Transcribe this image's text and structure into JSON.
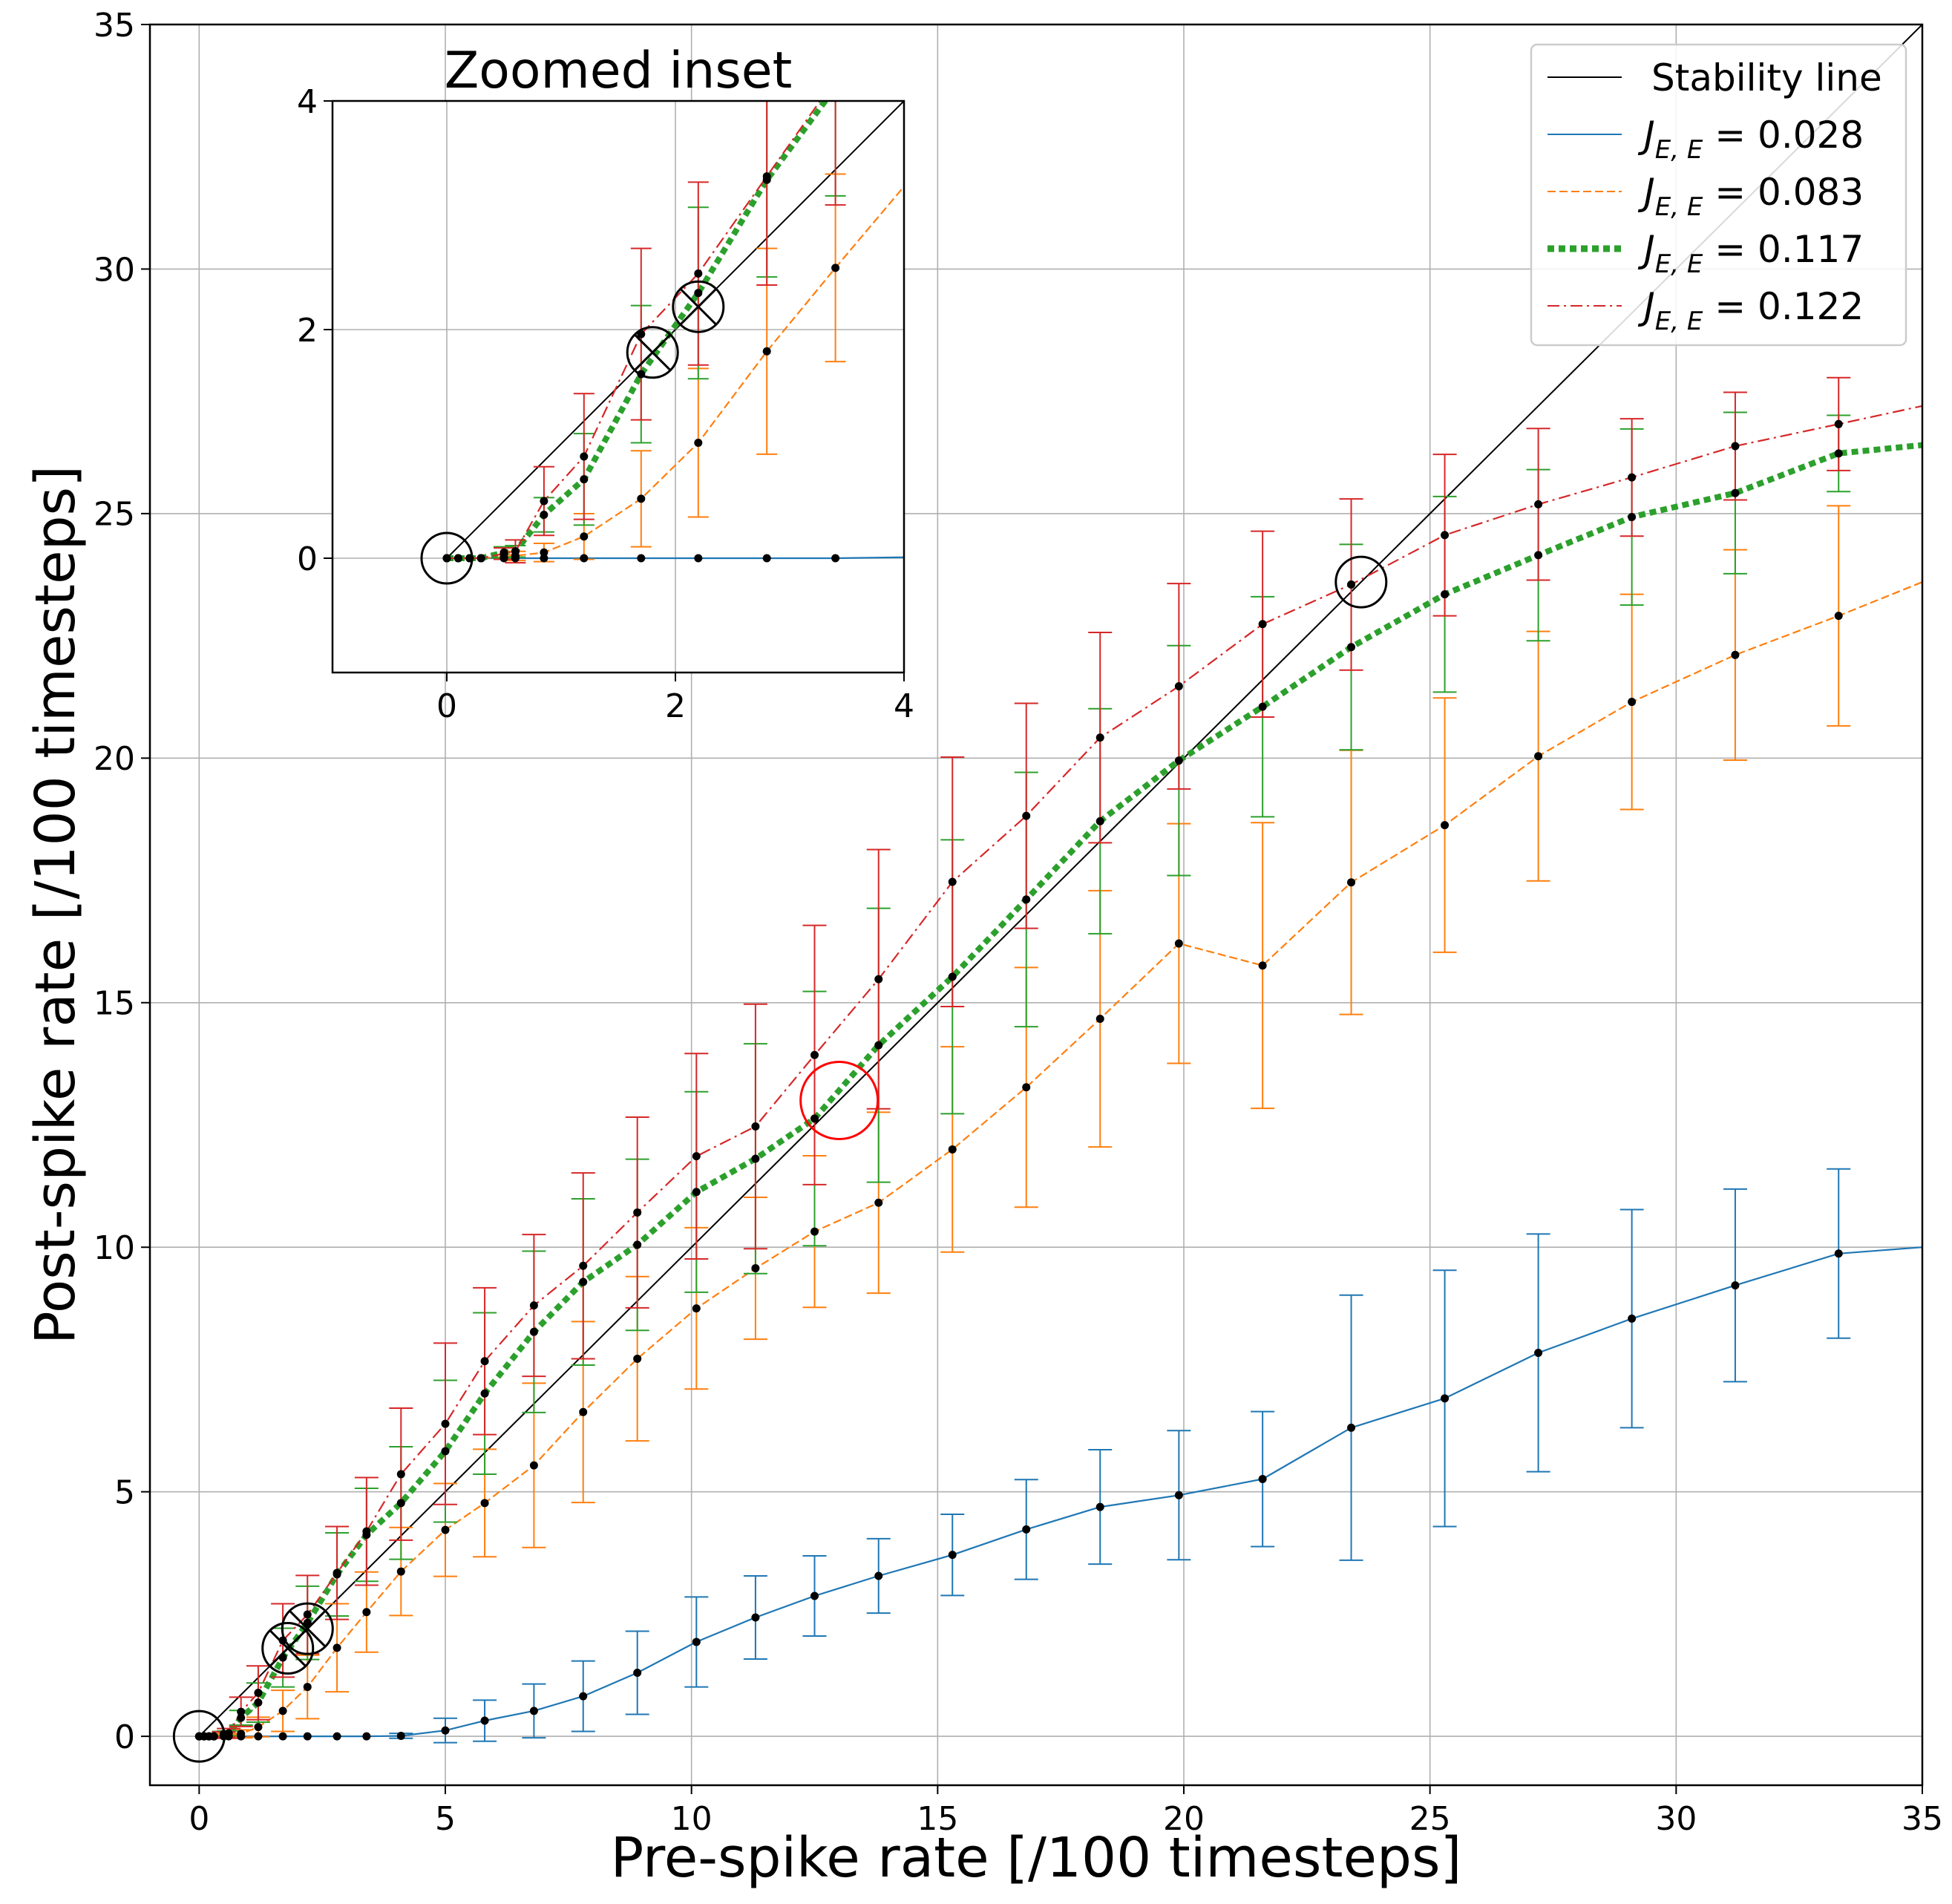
{
  "chart_data": {
    "type": "line",
    "xlabel": "Pre-spike rate [/100 timesteps]",
    "ylabel": "Post-spike rate [/100 timesteps]",
    "xlim": [
      -1,
      35
    ],
    "ylim": [
      -1,
      35
    ],
    "xticks": [
      0,
      5,
      10,
      15,
      20,
      25,
      30,
      35
    ],
    "yticks": [
      0,
      5,
      10,
      15,
      20,
      25,
      30,
      35
    ],
    "grid": true,
    "legend_position": "top-right",
    "legend": [
      {
        "key": "stability",
        "label": "Stability line"
      },
      {
        "key": "s028",
        "label_prefix": "J",
        "label_sub": "E, E",
        "label_value": " = 0.028"
      },
      {
        "key": "s083",
        "label_prefix": "J",
        "label_sub": "E, E",
        "label_value": " = 0.083"
      },
      {
        "key": "s117",
        "label_prefix": "J",
        "label_sub": "E, E",
        "label_value": " = 0.117"
      },
      {
        "key": "s122",
        "label_prefix": "J",
        "label_sub": "E, E",
        "label_value": " = 0.122"
      }
    ],
    "stability_line": {
      "x": [
        0,
        35
      ],
      "y": [
        0,
        35
      ]
    },
    "series": [
      {
        "key": "s028",
        "name": "J_E,E = 0.028",
        "color": "#1f77b4",
        "style": "solid",
        "x": [
          0,
          0.1,
          0.2,
          0.3,
          0.5,
          0.6,
          0.85,
          1.2,
          1.7,
          2.2,
          2.8,
          3.4,
          4.1,
          5.0,
          5.8,
          6.8,
          7.8,
          8.9,
          10.1,
          11.3,
          12.5,
          13.8,
          15.3,
          16.8,
          18.3,
          19.9,
          21.6,
          23.4,
          25.3,
          27.2,
          29.1,
          31.2,
          33.3,
          35
        ],
        "y": [
          0,
          0,
          0,
          0,
          0,
          0,
          0,
          0,
          0,
          0,
          0,
          0,
          0.01,
          0.12,
          0.32,
          0.52,
          0.82,
          1.3,
          1.93,
          2.43,
          2.87,
          3.28,
          3.71,
          4.23,
          4.69,
          4.93,
          5.26,
          6.31,
          6.91,
          7.84,
          8.54,
          9.22,
          9.87,
          10.0
        ],
        "err": [
          0,
          0,
          0,
          0,
          0,
          0,
          0,
          0,
          0,
          0,
          0,
          0,
          0.05,
          0.25,
          0.42,
          0.55,
          0.72,
          0.85,
          0.92,
          0.85,
          0.82,
          0.76,
          0.83,
          1.02,
          1.17,
          1.32,
          1.38,
          2.71,
          2.62,
          2.43,
          2.23,
          1.97,
          1.73,
          null
        ]
      },
      {
        "key": "s083",
        "name": "J_E,E = 0.083",
        "color": "#ff7f0e",
        "style": "dashed",
        "x": [
          0,
          0.1,
          0.2,
          0.3,
          0.5,
          0.6,
          0.85,
          1.2,
          1.7,
          2.2,
          2.8,
          3.4,
          4.1,
          5.0,
          5.8,
          6.8,
          7.8,
          8.9,
          10.1,
          11.3,
          12.5,
          13.8,
          15.3,
          16.8,
          18.3,
          19.9,
          21.6,
          23.4,
          25.3,
          27.2,
          29.1,
          31.2,
          33.3,
          35
        ],
        "y": [
          0,
          0,
          0,
          0,
          0.01,
          0.02,
          0.05,
          0.19,
          0.52,
          1.01,
          1.81,
          2.54,
          3.37,
          4.22,
          4.77,
          5.54,
          6.63,
          7.72,
          8.75,
          9.57,
          10.32,
          10.91,
          12.0,
          13.27,
          14.67,
          16.21,
          15.76,
          17.46,
          18.63,
          20.04,
          21.15,
          22.11,
          22.91,
          23.6
        ],
        "err": [
          0,
          0,
          0,
          0,
          0.02,
          0.04,
          0.08,
          0.2,
          0.42,
          0.65,
          0.9,
          0.82,
          0.9,
          0.95,
          1.1,
          1.68,
          1.85,
          1.68,
          1.65,
          1.45,
          1.55,
          1.85,
          2.1,
          2.45,
          2.62,
          2.45,
          2.92,
          2.7,
          2.6,
          2.55,
          2.2,
          2.15,
          2.25,
          null
        ]
      },
      {
        "key": "s117",
        "name": "J_E,E = 0.117",
        "color": "#2ca02c",
        "style": "dotted",
        "x": [
          0,
          0.1,
          0.2,
          0.3,
          0.5,
          0.6,
          0.85,
          1.2,
          1.7,
          2.2,
          2.8,
          3.4,
          4.1,
          5.0,
          5.8,
          6.8,
          7.8,
          8.9,
          10.1,
          11.3,
          12.5,
          13.8,
          15.3,
          16.8,
          18.3,
          19.9,
          21.6,
          23.4,
          25.3,
          27.2,
          29.1,
          31.2,
          33.3,
          35
        ],
        "y": [
          0,
          0,
          0,
          0,
          0.05,
          0.06,
          0.38,
          0.69,
          1.61,
          2.32,
          3.31,
          4.12,
          4.77,
          5.83,
          7.01,
          8.27,
          9.29,
          10.05,
          11.13,
          11.81,
          12.63,
          14.13,
          15.53,
          17.11,
          18.71,
          19.95,
          21.05,
          22.27,
          23.35,
          24.15,
          24.93,
          25.42,
          26.23,
          26.4
        ],
        "err": [
          0,
          0,
          0,
          0,
          0.05,
          0.05,
          0.15,
          0.4,
          0.6,
          0.75,
          0.85,
          0.95,
          1.15,
          1.45,
          1.65,
          1.65,
          1.7,
          1.75,
          2.05,
          2.35,
          2.6,
          2.8,
          2.8,
          2.6,
          2.3,
          2.35,
          2.25,
          2.1,
          2.0,
          1.75,
          1.8,
          1.65,
          0.78,
          null
        ]
      },
      {
        "key": "s122",
        "name": "J_E,E = 0.122",
        "color": "#d62728",
        "style": "dashdot",
        "x": [
          0,
          0.1,
          0.2,
          0.3,
          0.5,
          0.6,
          0.85,
          1.2,
          1.7,
          2.2,
          2.8,
          3.4,
          4.1,
          5.0,
          5.8,
          6.8,
          7.8,
          8.9,
          10.1,
          11.3,
          12.5,
          13.8,
          15.3,
          16.8,
          18.3,
          19.9,
          21.6,
          23.4,
          25.3,
          27.2,
          29.1,
          31.2,
          33.3,
          35
        ],
        "y": [
          0,
          0,
          0,
          0,
          0.04,
          0.06,
          0.5,
          0.89,
          1.96,
          2.49,
          3.34,
          4.19,
          5.36,
          6.39,
          7.67,
          8.81,
          9.62,
          10.71,
          11.86,
          12.47,
          13.93,
          15.48,
          17.47,
          18.82,
          20.42,
          21.47,
          22.74,
          23.55,
          24.56,
          25.19,
          25.74,
          26.38,
          26.83,
          27.2
        ],
        "err": [
          0,
          0,
          0,
          0,
          0.05,
          0.1,
          0.3,
          0.55,
          0.75,
          0.8,
          0.95,
          1.1,
          1.35,
          1.65,
          1.5,
          1.45,
          1.9,
          1.95,
          2.1,
          2.5,
          2.65,
          2.65,
          2.55,
          2.3,
          2.15,
          2.1,
          1.9,
          1.75,
          1.65,
          1.55,
          1.2,
          1.1,
          0.95,
          null
        ]
      }
    ],
    "markers": [
      {
        "type": "circle",
        "x": 0,
        "y": 0,
        "color": "#000000"
      },
      {
        "type": "circle-cross",
        "x": 1.8,
        "y": 1.8,
        "color": "#000000"
      },
      {
        "type": "circle-cross",
        "x": 2.2,
        "y": 2.2,
        "color": "#000000"
      },
      {
        "type": "circle",
        "x": 23.6,
        "y": 23.6,
        "color": "#000000"
      },
      {
        "type": "circle",
        "x": 13.0,
        "y": 13.0,
        "color": "#ff0000"
      }
    ],
    "inset": {
      "title": "Zoomed inset",
      "xlim": [
        -1,
        4
      ],
      "ylim": [
        -1,
        4
      ],
      "xticks": [
        0,
        2,
        4
      ],
      "yticks": [
        0,
        2,
        4
      ],
      "grid": true,
      "markers": [
        {
          "type": "circle",
          "x": 0,
          "y": 0,
          "color": "#000000"
        },
        {
          "type": "circle-cross",
          "x": 1.8,
          "y": 1.8,
          "color": "#000000"
        },
        {
          "type": "circle-cross",
          "x": 2.2,
          "y": 2.2,
          "color": "#000000"
        }
      ]
    }
  }
}
